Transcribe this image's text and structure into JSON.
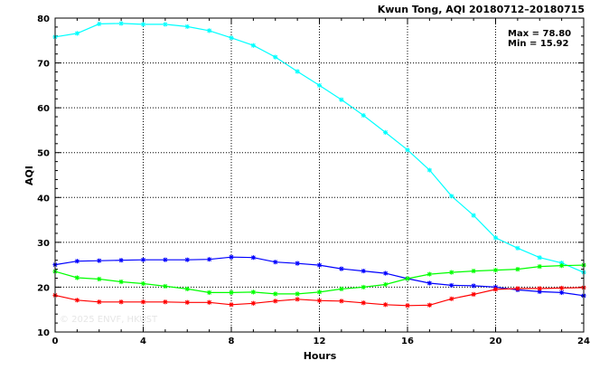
{
  "chart_data": {
    "type": "line",
    "title": "Kwun Tong, AQI 20180712–20180715",
    "max_label": "Max = 78.80",
    "min_label": "Min = 15.92",
    "xlabel": "Hours",
    "ylabel": "AQI",
    "watermark": "© 2025  ENVF, HKUST",
    "xlim": [
      0,
      24
    ],
    "ylim": [
      10,
      80
    ],
    "xticks": [
      0,
      4,
      8,
      12,
      16,
      20,
      24
    ],
    "yticks": [
      10,
      20,
      30,
      40,
      50,
      60,
      70,
      80
    ],
    "grid": true,
    "x": [
      0,
      1,
      2,
      3,
      4,
      5,
      6,
      7,
      8,
      9,
      10,
      11,
      12,
      13,
      14,
      15,
      16,
      17,
      18,
      19,
      20,
      21,
      22,
      23,
      24
    ],
    "series": [
      {
        "color": "#00ffff",
        "values": [
          75.8,
          76.6,
          78.7,
          78.8,
          78.6,
          78.6,
          78.1,
          77.2,
          75.6,
          73.9,
          71.3,
          68.1,
          65.0,
          61.8,
          58.3,
          54.5,
          50.6,
          46.1,
          40.3,
          36.0,
          31.0,
          28.7,
          26.6,
          25.4,
          23.3
        ]
      },
      {
        "color": "#0000ff",
        "values": [
          25.0,
          25.8,
          25.9,
          26.0,
          26.1,
          26.1,
          26.1,
          26.2,
          26.7,
          26.6,
          25.6,
          25.3,
          24.9,
          24.1,
          23.6,
          23.1,
          21.9,
          20.9,
          20.4,
          20.3,
          20.0,
          19.4,
          19.0,
          18.8,
          18.1
        ]
      },
      {
        "color": "#00ff00",
        "values": [
          23.5,
          22.1,
          21.8,
          21.2,
          20.8,
          20.2,
          19.6,
          18.8,
          18.8,
          18.9,
          18.5,
          18.5,
          18.9,
          19.6,
          20.0,
          20.6,
          21.9,
          22.9,
          23.3,
          23.6,
          23.8,
          24.0,
          24.6,
          24.8,
          24.9
        ]
      },
      {
        "color": "#ff0000",
        "values": [
          18.2,
          17.1,
          16.7,
          16.7,
          16.7,
          16.7,
          16.6,
          16.6,
          16.1,
          16.4,
          16.9,
          17.3,
          17.0,
          16.9,
          16.5,
          16.1,
          15.9,
          16.0,
          17.4,
          18.4,
          19.5,
          19.7,
          19.7,
          19.8,
          19.9
        ]
      }
    ]
  }
}
